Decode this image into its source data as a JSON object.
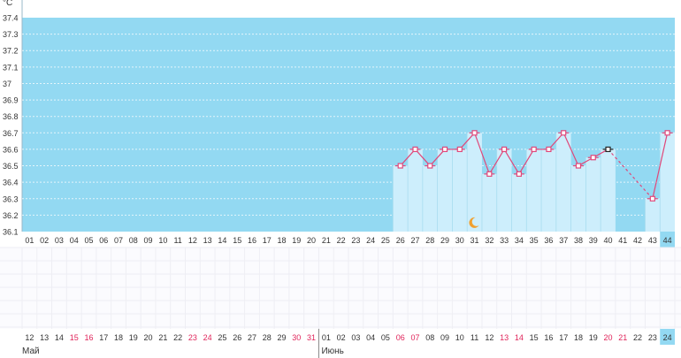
{
  "chart_data": {
    "type": "bar",
    "unit_label": "°C",
    "ylim": [
      36.1,
      37.4
    ],
    "y_ticks": [
      "37.4",
      "37.3",
      "37.2",
      "37.1",
      "37",
      "36.9",
      "36.8",
      "36.7",
      "36.6",
      "36.5",
      "36.4",
      "36.3",
      "36.2",
      "36.1"
    ],
    "cycle_days": [
      "01",
      "02",
      "03",
      "04",
      "05",
      "06",
      "07",
      "08",
      "09",
      "10",
      "11",
      "12",
      "13",
      "14",
      "15",
      "16",
      "17",
      "18",
      "19",
      "20",
      "21",
      "22",
      "23",
      "24",
      "25",
      "26",
      "27",
      "28",
      "29",
      "30",
      "31",
      "32",
      "33",
      "34",
      "35",
      "36",
      "37",
      "38",
      "39",
      "40",
      "41",
      "42",
      "43",
      "44"
    ],
    "current_day": "44",
    "temperatures": [
      null,
      null,
      null,
      null,
      null,
      null,
      null,
      null,
      null,
      null,
      null,
      null,
      null,
      null,
      null,
      null,
      null,
      null,
      null,
      null,
      null,
      null,
      null,
      null,
      null,
      36.5,
      36.6,
      36.5,
      36.6,
      36.6,
      36.7,
      36.45,
      36.6,
      36.45,
      36.6,
      36.6,
      36.7,
      36.5,
      36.55,
      36.6,
      null,
      null,
      36.3,
      36.7
    ],
    "highlighted_day": "40",
    "moon_day": "31",
    "dates": [
      "12",
      "13",
      "14",
      "15",
      "16",
      "17",
      "18",
      "19",
      "20",
      "21",
      "22",
      "23",
      "24",
      "25",
      "26",
      "27",
      "28",
      "29",
      "30",
      "31",
      "01",
      "02",
      "03",
      "04",
      "05",
      "06",
      "07",
      "08",
      "09",
      "10",
      "11",
      "12",
      "13",
      "14",
      "15",
      "16",
      "17",
      "18",
      "19",
      "20",
      "21",
      "22",
      "23",
      "24"
    ],
    "weekend_dates_idx": [
      3,
      4,
      11,
      12,
      18,
      19,
      25,
      26,
      32,
      33,
      39,
      40
    ],
    "months": [
      {
        "label": "Май",
        "start_index": 0
      },
      {
        "label": "Июнь",
        "start_index": 20
      }
    ],
    "colors": {
      "plot_bg": "#93d9f2",
      "bar_fill": "#cdeefc",
      "line": "#e0487a",
      "weekend_text": "#e0245a",
      "normal_text": "#333333",
      "current_bg": "#93d9f2",
      "moon": "#f0a030"
    },
    "grid": true
  }
}
